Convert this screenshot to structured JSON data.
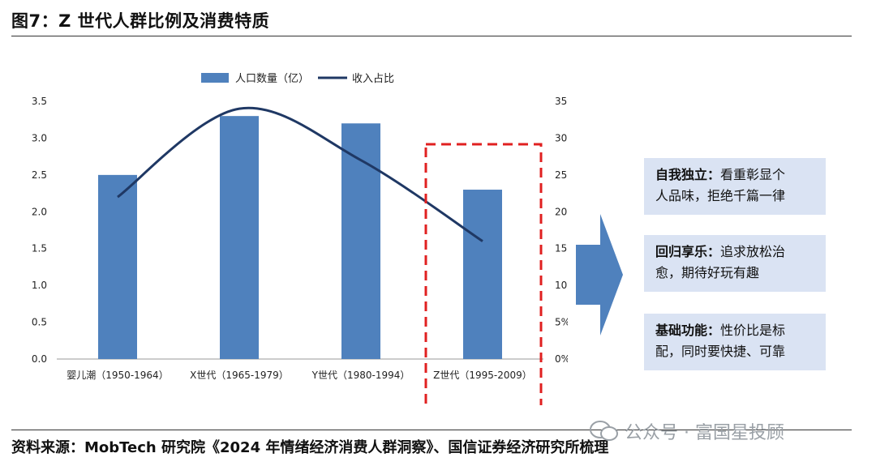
{
  "figure": {
    "title": "图7：Z 世代人群比例及消费特质",
    "source": "资料来源：MobTech 研究院《2024 年情绪经济消费人群洞察》、国信证券经济研究所梳理",
    "watermark": "公众号 · 富国星投顾"
  },
  "chart_data": {
    "type": "bar",
    "categories": [
      "婴儿潮（1950-1964）",
      "X世代（1965-1979）",
      "Y世代（1980-1994）",
      "Z世代（1995-2009）"
    ],
    "series": [
      {
        "name": "人口数量（亿）",
        "type": "bar",
        "axis": "left",
        "color": "#4f81bd",
        "values": [
          2.5,
          3.3,
          3.2,
          2.3
        ]
      },
      {
        "name": "收入占比",
        "type": "line",
        "axis": "right",
        "color": "#1f3864",
        "values": [
          0.22,
          0.34,
          0.27,
          0.16
        ]
      }
    ],
    "ylim_left": [
      0,
      3.5
    ],
    "yticks_left": [
      "0.0",
      "0.5",
      "1.0",
      "1.5",
      "2.0",
      "2.5",
      "3.0",
      "3.5"
    ],
    "ylim_right": [
      0,
      0.35
    ],
    "yticks_right": [
      "0%",
      "5%",
      "10%",
      "15%",
      "20%",
      "25%",
      "30%",
      "35%"
    ],
    "highlight_category": "Z世代（1995-2009）",
    "highlight_color": "#e02020",
    "legend_position": "top-center",
    "grid": false
  },
  "callouts": [
    {
      "head": "自我独立：",
      "line1": "看重彰显个",
      "line2": "人品味，拒绝千篇一律"
    },
    {
      "head": "回归享乐：",
      "line1": "追求放松治",
      "line2": "愈，期待好玩有趣"
    },
    {
      "head": "基础功能：",
      "line1": "性价比是标",
      "line2": "配，同时要快捷、可靠"
    }
  ],
  "colors": {
    "callout_bg": "#dae3f3",
    "arrow": "#4f81bd"
  }
}
